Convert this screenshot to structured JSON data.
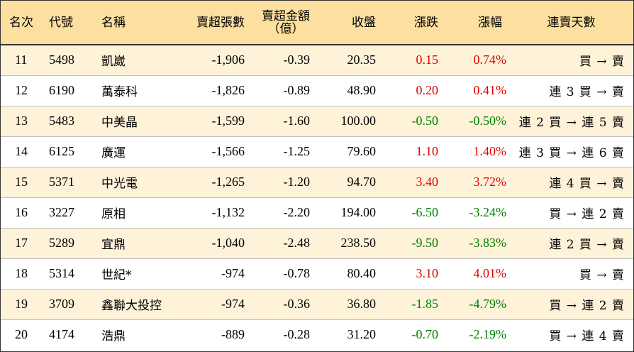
{
  "colors": {
    "header_bg": "#fddf9f",
    "odd_row_bg": "#fef3d9",
    "up": "#e00000",
    "down": "#008000"
  },
  "headers": {
    "rank": "名次",
    "code": "代號",
    "name": "名稱",
    "net_sell_lots": "賣超張數",
    "net_sell_amount_line1": "賣超金額",
    "net_sell_amount_line2": "（億）",
    "close": "收盤",
    "change": "漲跌",
    "change_pct": "漲幅",
    "streak": "連賣天數"
  },
  "rows": [
    {
      "rank": "11",
      "code": "5498",
      "name": "凱崴",
      "net_sell_lots": "-1,906",
      "net_sell_amount": "-0.39",
      "close": "20.35",
      "change": "0.15",
      "change_pct": "0.74%",
      "direction": "up",
      "streak": "買 → 賣"
    },
    {
      "rank": "12",
      "code": "6190",
      "name": "萬泰科",
      "net_sell_lots": "-1,826",
      "net_sell_amount": "-0.89",
      "close": "48.90",
      "change": "0.20",
      "change_pct": "0.41%",
      "direction": "up",
      "streak": "連 3 買 → 賣"
    },
    {
      "rank": "13",
      "code": "5483",
      "name": "中美晶",
      "net_sell_lots": "-1,599",
      "net_sell_amount": "-1.60",
      "close": "100.00",
      "change": "-0.50",
      "change_pct": "-0.50%",
      "direction": "down",
      "streak": "連 2 買 → 連 5 賣"
    },
    {
      "rank": "14",
      "code": "6125",
      "name": "廣運",
      "net_sell_lots": "-1,566",
      "net_sell_amount": "-1.25",
      "close": "79.60",
      "change": "1.10",
      "change_pct": "1.40%",
      "direction": "up",
      "streak": "連 3 買 → 連 6 賣"
    },
    {
      "rank": "15",
      "code": "5371",
      "name": "中光電",
      "net_sell_lots": "-1,265",
      "net_sell_amount": "-1.20",
      "close": "94.70",
      "change": "3.40",
      "change_pct": "3.72%",
      "direction": "up",
      "streak": "連 4 買 → 賣"
    },
    {
      "rank": "16",
      "code": "3227",
      "name": "原相",
      "net_sell_lots": "-1,132",
      "net_sell_amount": "-2.20",
      "close": "194.00",
      "change": "-6.50",
      "change_pct": "-3.24%",
      "direction": "down",
      "streak": "買 → 連 2 賣"
    },
    {
      "rank": "17",
      "code": "5289",
      "name": "宜鼎",
      "net_sell_lots": "-1,040",
      "net_sell_amount": "-2.48",
      "close": "238.50",
      "change": "-9.50",
      "change_pct": "-3.83%",
      "direction": "down",
      "streak": "連 2 買 → 賣"
    },
    {
      "rank": "18",
      "code": "5314",
      "name": "世紀*",
      "net_sell_lots": "-974",
      "net_sell_amount": "-0.78",
      "close": "80.40",
      "change": "3.10",
      "change_pct": "4.01%",
      "direction": "up",
      "streak": "買 → 賣"
    },
    {
      "rank": "19",
      "code": "3709",
      "name": "鑫聯大投控",
      "net_sell_lots": "-974",
      "net_sell_amount": "-0.36",
      "close": "36.80",
      "change": "-1.85",
      "change_pct": "-4.79%",
      "direction": "down",
      "streak": "買 → 連 2 賣"
    },
    {
      "rank": "20",
      "code": "4174",
      "name": "浩鼎",
      "net_sell_lots": "-889",
      "net_sell_amount": "-0.28",
      "close": "31.20",
      "change": "-0.70",
      "change_pct": "-2.19%",
      "direction": "down",
      "streak": "買 → 連 4 賣"
    }
  ]
}
